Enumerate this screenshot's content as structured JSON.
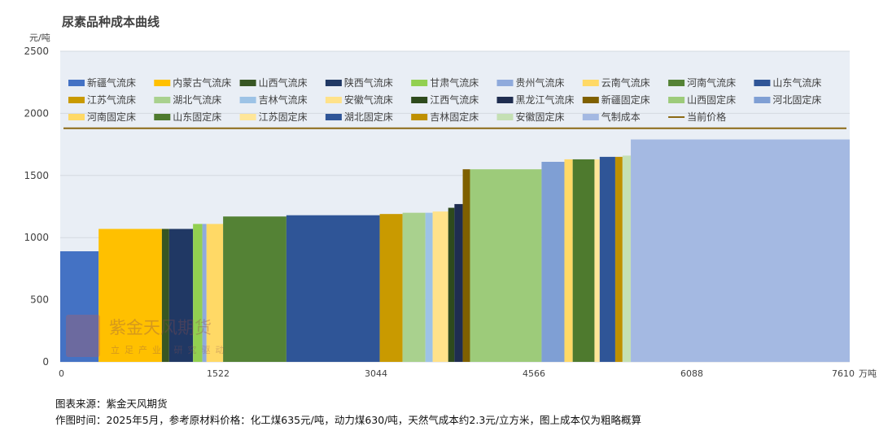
{
  "chart_data": {
    "type": "bar",
    "title": "尿素品种成本曲线",
    "ylabel": "元/吨",
    "xlabel": "万吨",
    "ylim": [
      0,
      2500
    ],
    "xlim": [
      0,
      7610
    ],
    "yticks": [
      "0",
      "500",
      "1000",
      "1500",
      "2000",
      "2500"
    ],
    "xticks": [
      "0",
      "1522",
      "3044",
      "4566",
      "6088",
      "7610"
    ],
    "x_unit_label": "万吨",
    "grid": true,
    "legend_position": "top",
    "current_price": 1880,
    "series": [
      {
        "name": "新疆气流床",
        "color": "#4472C4",
        "x_start": 0,
        "x_end": 370,
        "value": 890
      },
      {
        "name": "内蒙古气流床",
        "color": "#FFC000",
        "x_start": 370,
        "x_end": 980,
        "value": 1070
      },
      {
        "name": "山西气流床",
        "color": "#375623",
        "x_start": 980,
        "x_end": 1050,
        "value": 1070
      },
      {
        "name": "陕西气流床",
        "color": "#203864",
        "x_start": 1050,
        "x_end": 1280,
        "value": 1070
      },
      {
        "name": "甘肃气流床",
        "color": "#92D050",
        "x_start": 1280,
        "x_end": 1370,
        "value": 1110
      },
      {
        "name": "贵州气流床",
        "color": "#8FAADC",
        "x_start": 1370,
        "x_end": 1410,
        "value": 1110
      },
      {
        "name": "云南气流床",
        "color": "#FFD966",
        "x_start": 1410,
        "x_end": 1570,
        "value": 1110
      },
      {
        "name": "河南气流床",
        "color": "#548235",
        "x_start": 1570,
        "x_end": 2180,
        "value": 1170
      },
      {
        "name": "山东气流床",
        "color": "#2F5597",
        "x_start": 2180,
        "x_end": 3080,
        "value": 1180
      },
      {
        "name": "江苏气流床",
        "color": "#C99A00",
        "x_start": 3080,
        "x_end": 3300,
        "value": 1190
      },
      {
        "name": "湖北气流床",
        "color": "#A9D18E",
        "x_start": 3300,
        "x_end": 3520,
        "value": 1200
      },
      {
        "name": "吉林气流床",
        "color": "#9DC3E6",
        "x_start": 3520,
        "x_end": 3590,
        "value": 1200
      },
      {
        "name": "安徽气流床",
        "color": "#FFE28A",
        "x_start": 3590,
        "x_end": 3740,
        "value": 1210
      },
      {
        "name": "江西气流床",
        "color": "#2E4A1C",
        "x_start": 3740,
        "x_end": 3800,
        "value": 1240
      },
      {
        "name": "黑龙江气流床",
        "color": "#1F2D50",
        "x_start": 3800,
        "x_end": 3880,
        "value": 1270
      },
      {
        "name": "新疆固定床",
        "color": "#7F6000",
        "x_start": 3880,
        "x_end": 3950,
        "value": 1550
      },
      {
        "name": "山西固定床",
        "color": "#9DCB7A",
        "x_start": 3950,
        "x_end": 4640,
        "value": 1550
      },
      {
        "name": "河北固定床",
        "color": "#7F9FD4",
        "x_start": 4640,
        "x_end": 4860,
        "value": 1610
      },
      {
        "name": "河南固定床",
        "color": "#FFD966",
        "x_start": 4860,
        "x_end": 4940,
        "value": 1630
      },
      {
        "name": "山东固定床",
        "color": "#4E7A2E",
        "x_start": 4940,
        "x_end": 5150,
        "value": 1630
      },
      {
        "name": "江苏固定床",
        "color": "#FFE699",
        "x_start": 5150,
        "x_end": 5200,
        "value": 1630
      },
      {
        "name": "湖北固定床",
        "color": "#2F5597",
        "x_start": 5200,
        "x_end": 5350,
        "value": 1650
      },
      {
        "name": "吉林固定床",
        "color": "#BF9000",
        "x_start": 5350,
        "x_end": 5420,
        "value": 1650
      },
      {
        "name": "安徽固定床",
        "color": "#C5E0B4",
        "x_start": 5420,
        "x_end": 5500,
        "value": 1660
      },
      {
        "name": "气制成本",
        "color": "#A4B9E2",
        "x_start": 5500,
        "x_end": 7610,
        "value": 1790
      }
    ],
    "legend": [
      {
        "name": "新疆气流床",
        "color": "#4472C4",
        "kind": "box"
      },
      {
        "name": "内蒙古气流床",
        "color": "#FFC000",
        "kind": "box"
      },
      {
        "name": "山西气流床",
        "color": "#375623",
        "kind": "box"
      },
      {
        "name": "陕西气流床",
        "color": "#203864",
        "kind": "box"
      },
      {
        "name": "甘肃气流床",
        "color": "#92D050",
        "kind": "box"
      },
      {
        "name": "贵州气流床",
        "color": "#8FAADC",
        "kind": "box"
      },
      {
        "name": "云南气流床",
        "color": "#FFD966",
        "kind": "box"
      },
      {
        "name": "河南气流床",
        "color": "#548235",
        "kind": "box"
      },
      {
        "name": "山东气流床",
        "color": "#2F5597",
        "kind": "box"
      },
      {
        "name": "江苏气流床",
        "color": "#C99A00",
        "kind": "box"
      },
      {
        "name": "湖北气流床",
        "color": "#A9D18E",
        "kind": "box"
      },
      {
        "name": "吉林气流床",
        "color": "#9DC3E6",
        "kind": "box"
      },
      {
        "name": "安徽气流床",
        "color": "#FFE28A",
        "kind": "box"
      },
      {
        "name": "江西气流床",
        "color": "#2E4A1C",
        "kind": "box"
      },
      {
        "name": "黑龙江气流床",
        "color": "#1F2D50",
        "kind": "box"
      },
      {
        "name": "新疆固定床",
        "color": "#7F6000",
        "kind": "box"
      },
      {
        "name": "山西固定床",
        "color": "#9DCB7A",
        "kind": "box"
      },
      {
        "name": "河北固定床",
        "color": "#7F9FD4",
        "kind": "box"
      },
      {
        "name": "河南固定床",
        "color": "#FFD966",
        "kind": "box"
      },
      {
        "name": "山东固定床",
        "color": "#4E7A2E",
        "kind": "box"
      },
      {
        "name": "江苏固定床",
        "color": "#FFE699",
        "kind": "box"
      },
      {
        "name": "湖北固定床",
        "color": "#2F5597",
        "kind": "box"
      },
      {
        "name": "吉林固定床",
        "color": "#BF9000",
        "kind": "box"
      },
      {
        "name": "安徽固定床",
        "color": "#C5E0B4",
        "kind": "box"
      },
      {
        "name": "气制成本",
        "color": "#A4B9E2",
        "kind": "box"
      },
      {
        "name": "当前价格",
        "color": "#8B6914",
        "kind": "line"
      }
    ],
    "price_line_color": "#8B6914",
    "plot_background": "#E9EEF5",
    "watermark": {
      "main": "紫金天风期货",
      "sub": "立足产业 研究驱动"
    }
  },
  "footer": {
    "source": "图表来源：紫金天风期货",
    "note": "作图时间：2025年5月，参考原材料价格：化工煤635元/吨，动力煤630/吨，天然气成本约2.3元/立方米，图上成本仅为粗略概算"
  }
}
